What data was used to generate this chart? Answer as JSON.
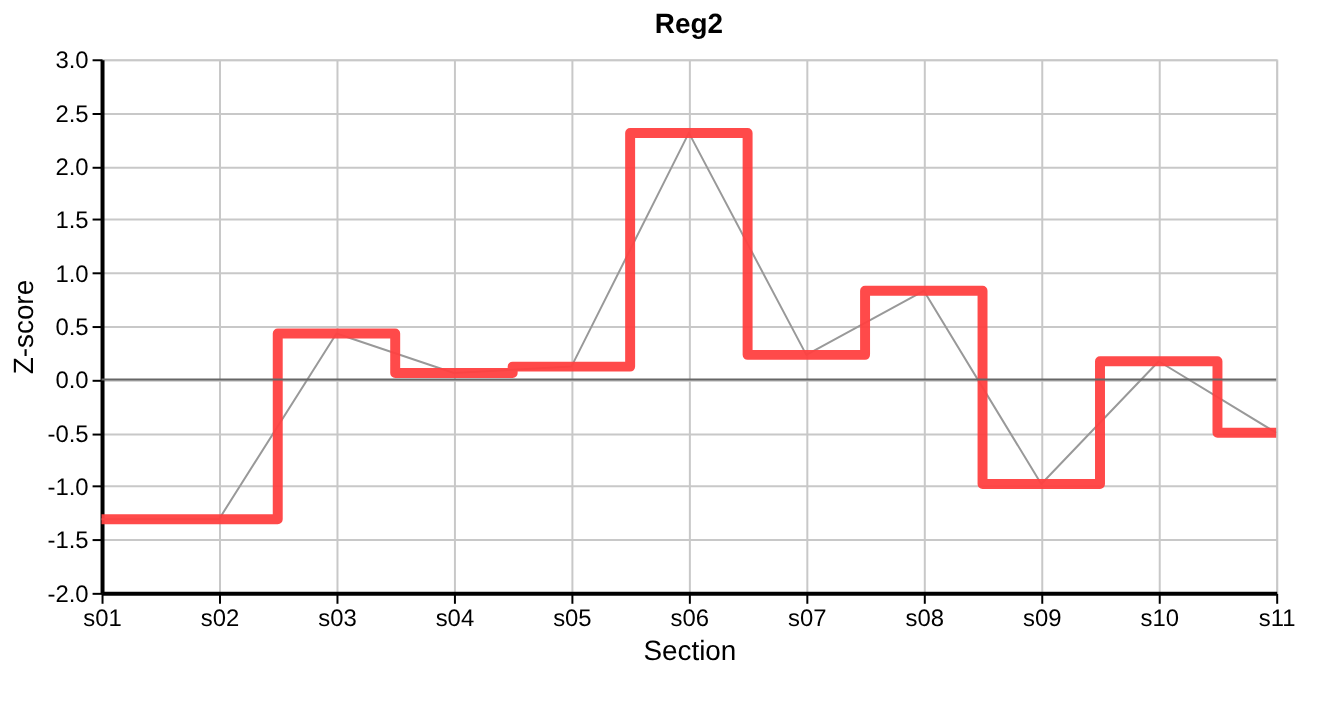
{
  "chart_data": {
    "type": "line",
    "title": "Reg2",
    "xlabel": "Section",
    "ylabel": "Z-score",
    "categories": [
      "s01",
      "s02",
      "s03",
      "s04",
      "s05",
      "s06",
      "s07",
      "s08",
      "s09",
      "s10",
      "s11"
    ],
    "series": [
      {
        "type": "line",
        "color": "#999999",
        "values": [
          -1.31,
          -1.31,
          0.43,
          0.06,
          0.12,
          2.31,
          0.23,
          0.83,
          -0.98,
          0.17,
          -0.5
        ]
      },
      {
        "type": "step",
        "color": "#ff4040",
        "values": [
          -1.31,
          -1.31,
          0.43,
          0.06,
          0.12,
          2.31,
          0.23,
          0.83,
          -0.98,
          0.17,
          -0.5
        ]
      }
    ],
    "ylim": [
      -2.0,
      3.0
    ],
    "yticks": [
      {
        "value": -2,
        "label": "-2.0"
      },
      {
        "value": -1.5,
        "label": "-1.5"
      },
      {
        "value": -1,
        "label": "-1.0"
      },
      {
        "value": -0.5,
        "label": "-0.5"
      },
      {
        "value": 0,
        "label": "0.0"
      },
      {
        "value": 0.5,
        "label": "0.5"
      },
      {
        "value": 1,
        "label": "1.0"
      },
      {
        "value": 1.5,
        "label": "1.5"
      },
      {
        "value": 2,
        "label": "2.0"
      },
      {
        "value": 2.5,
        "label": "2.5"
      },
      {
        "value": 3,
        "label": "3.0"
      }
    ],
    "ref_lines": [
      {
        "axis": "y",
        "value": 0,
        "color": "#666666"
      }
    ],
    "grid": true,
    "legend": false,
    "marker": "none",
    "line_style": "solid"
  }
}
